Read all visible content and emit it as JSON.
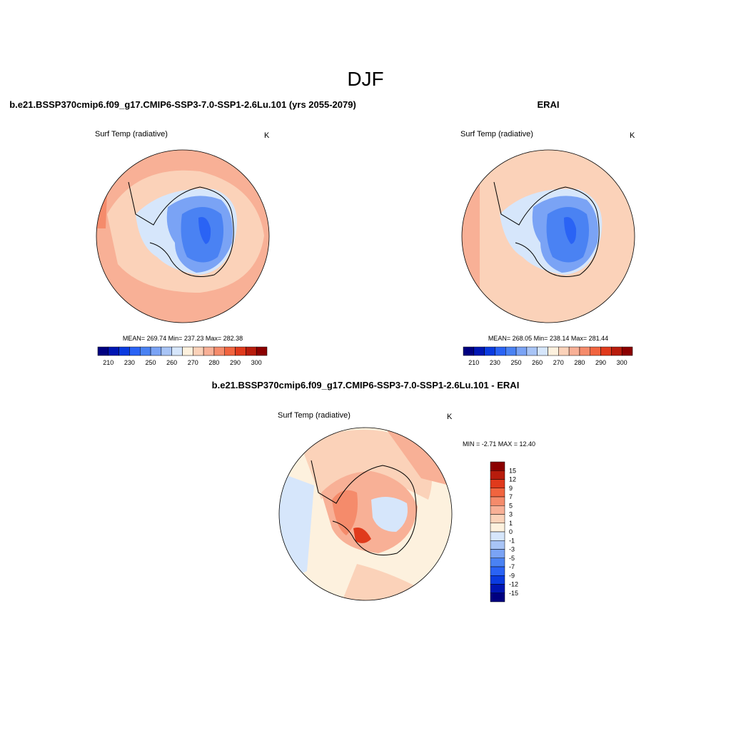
{
  "title": "DJF",
  "panels": [
    {
      "title": "b.e21.BSSP370cmip6.f09_g17.CMIP6-SSP3-7.0-SSP1-2.6Lu.101 (yrs 2055-2079)",
      "variable": "Surf Temp (radiative)",
      "units": "K",
      "stats": "MEAN= 269.74  Min= 237.23  Max= 282.38"
    },
    {
      "title": "ERAI",
      "variable": "Surf Temp (radiative)",
      "units": "K",
      "stats": "MEAN= 268.05  Min= 238.14  Max= 281.44"
    },
    {
      "title": "b.e21.BSSP370cmip6.f09_g17.CMIP6-SSP3-7.0-SSP1-2.6Lu.101 - ERAI",
      "variable": "Surf Temp (radiative)",
      "units": "K",
      "stats": "MIN =  -2.71 MAX =  12.40"
    }
  ],
  "colorbars": [
    {
      "labels": [
        "210",
        "230",
        "250",
        "260",
        "270",
        "280",
        "290",
        "300"
      ],
      "colors": [
        "#000080",
        "#0016b3",
        "#0a3be0",
        "#2a63f5",
        "#4a82f3",
        "#7aa3f5",
        "#a8c4f6",
        "#d6e6fb",
        "#fdf1de",
        "#fbd2b9",
        "#f8b096",
        "#f58b6b",
        "#f1643f",
        "#e03a1c",
        "#b81c0c",
        "#8b0000"
      ]
    },
    {
      "labels": [
        "15",
        "12",
        "9",
        "7",
        "5",
        "3",
        "1",
        "0",
        "-1",
        "-3",
        "-5",
        "-7",
        "-9",
        "-12",
        "-15"
      ],
      "colors": [
        "#8b0000",
        "#b81c0c",
        "#e03a1c",
        "#f1643f",
        "#f58b6b",
        "#f8b096",
        "#fbd2b9",
        "#fdf1de",
        "#d6e6fb",
        "#a8c4f6",
        "#7aa3f5",
        "#4a82f3",
        "#2a63f5",
        "#0a3be0",
        "#0016b3",
        "#000080"
      ]
    }
  ]
}
